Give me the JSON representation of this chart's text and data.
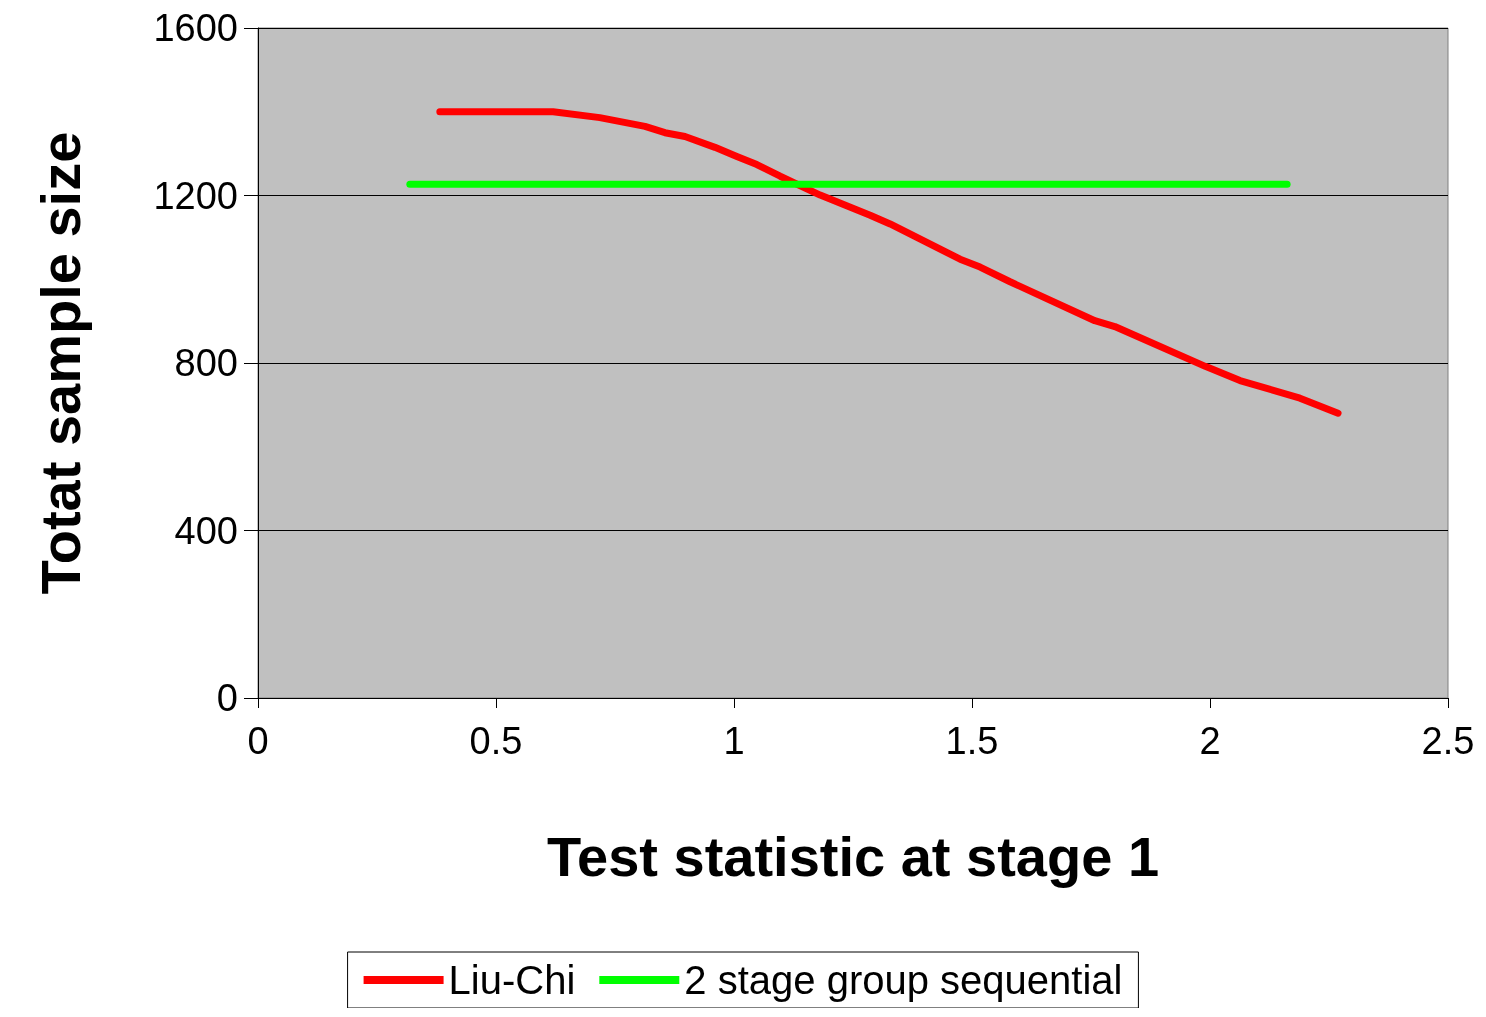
{
  "chart_data": {
    "type": "line",
    "xlabel": "Test statistic at stage 1",
    "ylabel": "Totat sample size",
    "xlim": [
      0,
      2.5
    ],
    "xticks": [
      0,
      0.5,
      1,
      1.5,
      2,
      2.5
    ],
    "ylim": [
      0,
      1600
    ],
    "yticks": [
      0,
      400,
      800,
      1200,
      1600
    ],
    "grid": "y",
    "legend": "bottom",
    "marker": "none",
    "line_style": "solid",
    "series": [
      {
        "name": "Liu-Chi",
        "color": "#ff0000",
        "x": [
          0.382,
          0.62,
          0.718,
          0.813,
          0.855,
          0.897,
          0.96,
          1.006,
          1.048,
          1.097,
          1.181,
          1.286,
          1.328,
          1.475,
          1.517,
          1.58,
          1.758,
          1.8,
          1.99,
          2.063,
          2.189,
          2.269
        ],
        "values": [
          1400,
          1400,
          1386,
          1365,
          1350,
          1341,
          1315,
          1293,
          1274,
          1246,
          1201,
          1153,
          1132,
          1048,
          1029,
          994,
          901,
          887,
          792,
          758,
          716,
          680
        ]
      },
      {
        "name": "2 stage group sequential",
        "color": "#00ff00",
        "x": [
          0.319,
          2.162
        ],
        "values": [
          1227,
          1227
        ]
      }
    ]
  }
}
